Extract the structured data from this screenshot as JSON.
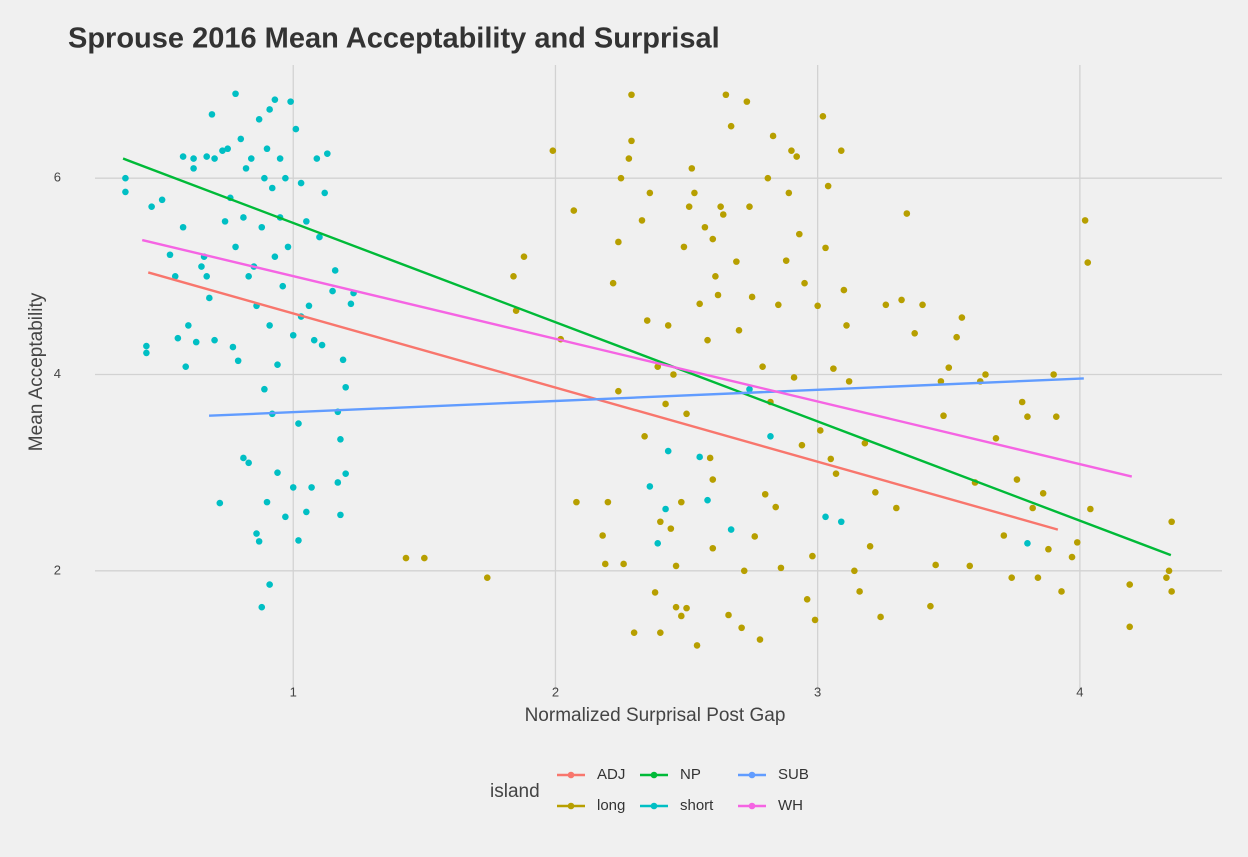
{
  "chart_data": {
    "type": "scatter",
    "title": "Sprouse 2016 Mean Acceptability and Surprisal",
    "x_label": "Normalized Surprisal Post Gap",
    "y_label": "Mean Acceptability",
    "legend_title": "island",
    "legend_position": "bottom",
    "grid": true,
    "xlim": [
      0.244,
      4.542
    ],
    "ylim": [
      0.786,
      7.153
    ],
    "xticks": [
      1,
      2,
      3,
      4
    ],
    "yticks": [
      2,
      4,
      6
    ],
    "series": [
      {
        "name": "long",
        "color": "#B79F00",
        "mode": "markers",
        "x": [
          1.43,
          1.5,
          1.74,
          1.84,
          1.85,
          1.88,
          1.99,
          2.02,
          2.07,
          2.08,
          2.18,
          2.19,
          2.2,
          2.22,
          2.24,
          2.24,
          2.25,
          2.26,
          2.28,
          2.29,
          2.29,
          2.3,
          2.33,
          2.34,
          2.35,
          2.36,
          2.38,
          2.39,
          2.4,
          2.4,
          2.42,
          2.43,
          2.44,
          2.45,
          2.46,
          2.46,
          2.48,
          2.48,
          2.49,
          2.5,
          2.5,
          2.51,
          2.52,
          2.53,
          2.54,
          2.55,
          2.57,
          2.58,
          2.59,
          2.6,
          2.6,
          2.6,
          2.61,
          2.62,
          2.63,
          2.64,
          2.65,
          2.66,
          2.67,
          2.69,
          2.7,
          2.71,
          2.72,
          2.73,
          2.74,
          2.75,
          2.76,
          2.78,
          2.79,
          2.8,
          2.81,
          2.82,
          2.83,
          2.84,
          2.85,
          2.86,
          2.88,
          2.89,
          2.9,
          2.91,
          2.92,
          2.93,
          2.94,
          2.95,
          2.96,
          2.98,
          2.99,
          3.0,
          3.01,
          3.02,
          3.03,
          3.04,
          3.05,
          3.06,
          3.07,
          3.09,
          3.1,
          3.11,
          3.12,
          3.14,
          3.16,
          3.18,
          3.2,
          3.22,
          3.24,
          3.26,
          3.3,
          3.32,
          3.34,
          3.37,
          3.4,
          3.43,
          3.45,
          3.47,
          3.48,
          3.5,
          3.53,
          3.55,
          3.58,
          3.6,
          3.62,
          3.64,
          3.68,
          3.71,
          3.74,
          3.76,
          3.78,
          3.8,
          3.82,
          3.84,
          3.86,
          3.88,
          3.9,
          3.91,
          3.93,
          3.97,
          3.99,
          4.02,
          4.03,
          4.04,
          4.19,
          4.19,
          4.33,
          4.34,
          4.35,
          4.35
        ],
        "values": [
          2.13,
          2.13,
          1.93,
          5.0,
          4.65,
          5.2,
          6.28,
          4.36,
          5.67,
          2.7,
          2.36,
          2.07,
          2.7,
          4.93,
          5.35,
          3.83,
          6.0,
          2.07,
          6.2,
          6.38,
          6.85,
          1.37,
          5.57,
          3.37,
          4.55,
          5.85,
          1.78,
          4.08,
          2.5,
          1.37,
          3.7,
          4.5,
          2.43,
          4.0,
          2.05,
          1.63,
          2.7,
          1.54,
          5.3,
          3.6,
          1.62,
          5.71,
          6.1,
          5.85,
          1.24,
          4.72,
          5.5,
          4.35,
          3.15,
          5.38,
          2.93,
          2.23,
          5.0,
          4.81,
          5.71,
          5.63,
          6.85,
          1.55,
          6.53,
          5.15,
          4.45,
          1.42,
          2.0,
          6.78,
          5.71,
          4.79,
          2.35,
          1.3,
          4.08,
          2.78,
          6.0,
          3.72,
          6.43,
          2.65,
          4.71,
          2.03,
          5.16,
          5.85,
          6.28,
          3.97,
          6.22,
          5.43,
          3.28,
          4.93,
          1.71,
          2.15,
          1.5,
          4.7,
          3.43,
          6.63,
          5.29,
          5.92,
          3.14,
          4.06,
          2.99,
          6.28,
          4.86,
          4.5,
          3.93,
          2.0,
          1.79,
          3.3,
          2.25,
          2.8,
          1.53,
          4.71,
          2.64,
          4.76,
          5.64,
          4.42,
          4.71,
          1.64,
          2.06,
          3.93,
          3.58,
          4.07,
          4.38,
          4.58,
          2.05,
          2.9,
          3.93,
          4.0,
          3.35,
          2.36,
          1.93,
          2.93,
          3.72,
          3.57,
          2.64,
          1.93,
          2.79,
          2.22,
          4.0,
          3.57,
          1.79,
          2.14,
          2.29,
          5.57,
          5.14,
          2.63,
          1.86,
          1.43,
          1.93,
          2.0,
          2.5,
          1.79
        ]
      },
      {
        "name": "short",
        "color": "#00BFC4",
        "mode": "markers",
        "x": [
          0.36,
          0.36,
          0.44,
          0.44,
          0.46,
          0.5,
          0.53,
          0.55,
          0.56,
          0.58,
          0.58,
          0.59,
          0.6,
          0.62,
          0.62,
          0.63,
          0.65,
          0.66,
          0.67,
          0.67,
          0.68,
          0.69,
          0.7,
          0.7,
          0.72,
          0.73,
          0.74,
          0.75,
          0.76,
          0.77,
          0.78,
          0.78,
          0.79,
          0.8,
          0.81,
          0.81,
          0.82,
          0.83,
          0.83,
          0.84,
          0.85,
          0.86,
          0.86,
          0.87,
          0.87,
          0.88,
          0.88,
          0.89,
          0.89,
          0.9,
          0.9,
          0.91,
          0.91,
          0.91,
          0.92,
          0.92,
          0.93,
          0.93,
          0.94,
          0.94,
          0.95,
          0.95,
          0.96,
          0.97,
          0.97,
          0.98,
          0.99,
          1.0,
          1.0,
          1.01,
          1.02,
          1.02,
          1.03,
          1.03,
          1.05,
          1.05,
          1.06,
          1.07,
          1.08,
          1.09,
          1.1,
          1.11,
          1.12,
          1.13,
          1.15,
          1.16,
          1.17,
          1.17,
          1.18,
          1.18,
          1.19,
          1.2,
          1.2,
          1.22,
          1.23,
          2.36,
          2.39,
          2.42,
          2.43,
          2.55,
          2.58,
          2.67,
          2.74,
          2.82,
          3.03,
          3.09,
          3.8
        ],
        "values": [
          6.0,
          5.86,
          4.29,
          4.22,
          5.71,
          5.78,
          5.22,
          5.0,
          4.37,
          6.22,
          5.5,
          4.08,
          4.5,
          6.2,
          6.1,
          4.33,
          5.1,
          5.2,
          6.22,
          5.0,
          4.78,
          6.65,
          6.2,
          4.35,
          2.69,
          6.28,
          5.56,
          6.3,
          5.8,
          4.28,
          6.86,
          5.3,
          4.14,
          6.4,
          5.6,
          3.15,
          6.1,
          5.0,
          3.1,
          6.2,
          5.1,
          4.7,
          2.38,
          6.6,
          2.3,
          5.5,
          1.63,
          6.0,
          3.85,
          6.3,
          2.7,
          6.7,
          4.5,
          1.86,
          5.9,
          3.6,
          6.8,
          5.2,
          4.1,
          3.0,
          6.2,
          5.6,
          4.9,
          6.0,
          2.55,
          5.3,
          6.78,
          4.4,
          2.85,
          6.5,
          3.5,
          2.31,
          5.95,
          4.59,
          5.56,
          2.6,
          4.7,
          2.85,
          4.35,
          6.2,
          5.4,
          4.3,
          5.85,
          6.25,
          4.85,
          5.06,
          3.62,
          2.9,
          3.34,
          2.57,
          4.15,
          3.87,
          2.99,
          4.72,
          4.83,
          2.86,
          2.28,
          2.63,
          3.22,
          3.16,
          2.72,
          2.42,
          3.85,
          3.37,
          2.55,
          2.5,
          2.28
        ]
      },
      {
        "name": "ADJ",
        "color": "#F8766D",
        "mode": "line",
        "x": [
          0.447,
          3.916
        ],
        "values": [
          5.04,
          2.42
        ]
      },
      {
        "name": "NP",
        "color": "#00BA38",
        "mode": "line",
        "x": [
          0.351,
          4.347
        ],
        "values": [
          6.2,
          2.16
        ]
      },
      {
        "name": "SUB",
        "color": "#619CFF",
        "mode": "line",
        "x": [
          0.679,
          4.015
        ],
        "values": [
          3.58,
          3.96
        ]
      },
      {
        "name": "WH",
        "color": "#F564E3",
        "mode": "line",
        "x": [
          0.424,
          4.198
        ],
        "values": [
          5.37,
          2.96
        ]
      }
    ]
  }
}
